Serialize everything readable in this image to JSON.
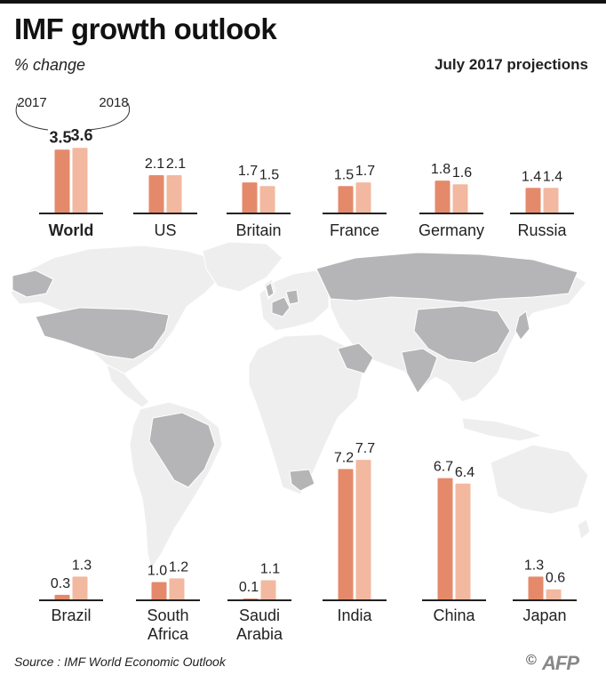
{
  "title": "IMF growth outlook",
  "subtitle": "% change",
  "projections": "July 2017 projections",
  "source": "Source : IMF World Economic Outlook",
  "logo": {
    "copyright": "©",
    "text": "AFP"
  },
  "legend": {
    "year1": "2017",
    "year2": "2018"
  },
  "colors": {
    "bar_2017": "#e48a6b",
    "bar_2018": "#f2b8a0",
    "map_land": "#eeeeee",
    "map_highlight": "#b5b5b7",
    "baseline": "#222222"
  },
  "chart_data": {
    "type": "bar",
    "title": "IMF growth outlook",
    "subtitle": "% change",
    "series": [
      {
        "name": "2017"
      },
      {
        "name": "2018"
      }
    ],
    "groups": [
      {
        "categories": [
          "World",
          "US",
          "Britain",
          "France",
          "Germany",
          "Russia"
        ],
        "values_2017": [
          3.5,
          2.1,
          1.7,
          1.5,
          1.8,
          1.4
        ],
        "values_2018": [
          3.6,
          2.1,
          1.5,
          1.7,
          1.6,
          1.4
        ]
      },
      {
        "categories": [
          "Brazil",
          "South\nAfrica",
          "Saudi\nArabia",
          "India",
          "China",
          "Japan"
        ],
        "values_2017": [
          0.3,
          1.0,
          0.1,
          7.2,
          6.7,
          1.3
        ],
        "values_2018": [
          1.3,
          1.2,
          1.1,
          7.7,
          6.4,
          0.6
        ]
      }
    ],
    "ylim": [
      0,
      8
    ],
    "grid": false,
    "legend": "top-left"
  }
}
